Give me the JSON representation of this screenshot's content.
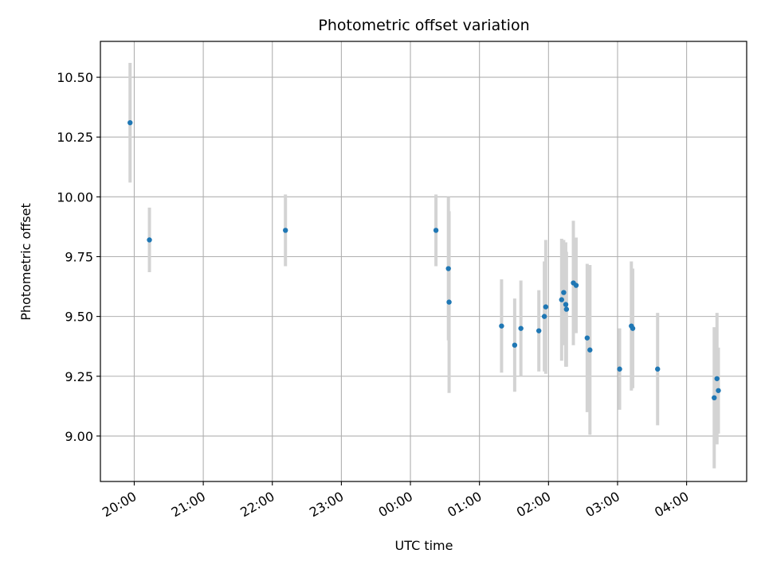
{
  "chart_data": {
    "type": "scatter",
    "title": "Photometric offset variation",
    "xlabel": "UTC time",
    "ylabel": "Photometric offset",
    "x_unit": "hours since 00:00 UTC (negative = previous evening)",
    "xlim": [
      -4.49,
      4.87
    ],
    "ylim": [
      8.81,
      10.65
    ],
    "grid": true,
    "x_ticks": [
      {
        "value": -4,
        "label": "20:00"
      },
      {
        "value": -3,
        "label": "21:00"
      },
      {
        "value": -2,
        "label": "22:00"
      },
      {
        "value": -1,
        "label": "23:00"
      },
      {
        "value": 0,
        "label": "00:00"
      },
      {
        "value": 1,
        "label": "01:00"
      },
      {
        "value": 2,
        "label": "02:00"
      },
      {
        "value": 3,
        "label": "03:00"
      },
      {
        "value": 4,
        "label": "04:00"
      }
    ],
    "y_ticks": [
      {
        "value": 9.0,
        "label": "9.00"
      },
      {
        "value": 9.25,
        "label": "9.25"
      },
      {
        "value": 9.5,
        "label": "9.50"
      },
      {
        "value": 9.75,
        "label": "9.75"
      },
      {
        "value": 10.0,
        "label": "10.00"
      },
      {
        "value": 10.25,
        "label": "10.25"
      },
      {
        "value": 10.5,
        "label": "10.50"
      }
    ],
    "marker_color": "#1f77b4",
    "errorbar_color": "#d3d3d3",
    "series": [
      {
        "points": [
          {
            "x": -4.06,
            "y": 10.31,
            "err": 0.25
          },
          {
            "x": -3.78,
            "y": 9.82,
            "err": 0.135
          },
          {
            "x": -1.81,
            "y": 9.86,
            "err": 0.15
          },
          {
            "x": 0.37,
            "y": 9.86,
            "err": 0.15
          },
          {
            "x": 0.55,
            "y": 9.7,
            "err": 0.3
          },
          {
            "x": 0.56,
            "y": 9.56,
            "err": 0.38
          },
          {
            "x": 1.32,
            "y": 9.46,
            "err": 0.195
          },
          {
            "x": 1.51,
            "y": 9.38,
            "err": 0.195
          },
          {
            "x": 1.6,
            "y": 9.45,
            "err": 0.2
          },
          {
            "x": 1.86,
            "y": 9.44,
            "err": 0.17
          },
          {
            "x": 1.94,
            "y": 9.5,
            "err": 0.23
          },
          {
            "x": 1.96,
            "y": 9.54,
            "err": 0.28
          },
          {
            "x": 2.19,
            "y": 9.57,
            "err": 0.255
          },
          {
            "x": 2.22,
            "y": 9.6,
            "err": 0.22
          },
          {
            "x": 2.25,
            "y": 9.55,
            "err": 0.26
          },
          {
            "x": 2.26,
            "y": 9.53,
            "err": 0.24
          },
          {
            "x": 2.36,
            "y": 9.64,
            "err": 0.26
          },
          {
            "x": 2.4,
            "y": 9.63,
            "err": 0.2
          },
          {
            "x": 2.56,
            "y": 9.41,
            "err": 0.31
          },
          {
            "x": 2.6,
            "y": 9.36,
            "err": 0.355
          },
          {
            "x": 3.03,
            "y": 9.28,
            "err": 0.17
          },
          {
            "x": 3.2,
            "y": 9.46,
            "err": 0.27
          },
          {
            "x": 3.22,
            "y": 9.45,
            "err": 0.25
          },
          {
            "x": 3.58,
            "y": 9.28,
            "err": 0.235
          },
          {
            "x": 4.4,
            "y": 9.16,
            "err": 0.295
          },
          {
            "x": 4.44,
            "y": 9.24,
            "err": 0.275
          },
          {
            "x": 4.46,
            "y": 9.19,
            "err": 0.18
          }
        ]
      }
    ]
  }
}
